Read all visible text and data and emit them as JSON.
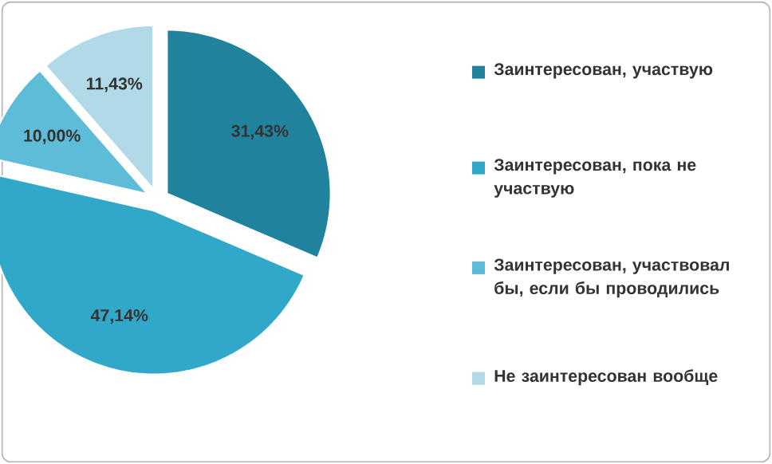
{
  "chart_data": {
    "type": "pie",
    "categories": [
      "Заинтересован, участвую",
      "Заинтересован, пока не участвую",
      "Заинтересован, участвовал бы, если бы проводились",
      "Не заинтересован вообще"
    ],
    "values": [
      31.43,
      47.14,
      10.0,
      11.43
    ],
    "value_labels": [
      "31,43%",
      "47,14%",
      "10,00%",
      "11,43%"
    ],
    "colors": [
      "#21829e",
      "#31a8c9",
      "#5dbdd8",
      "#b2d9e8"
    ],
    "legend": "right"
  }
}
